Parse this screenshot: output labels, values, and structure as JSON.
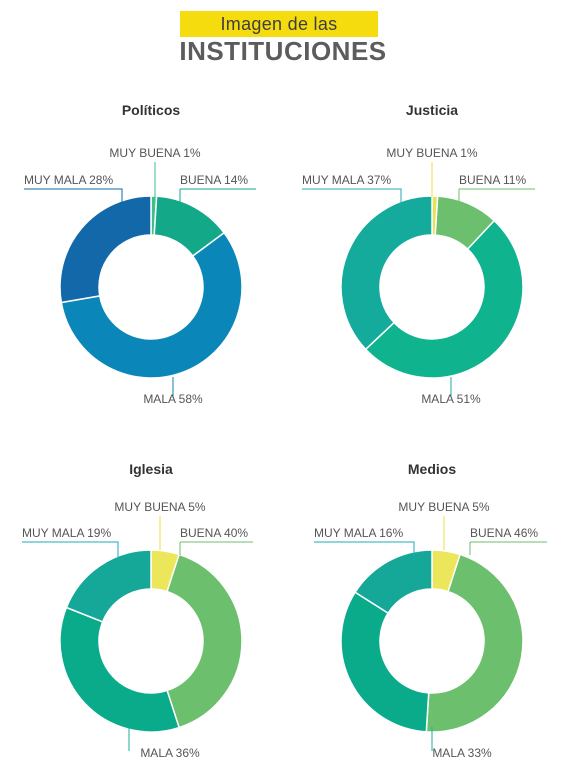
{
  "header": {
    "subtitle": "Imagen de las",
    "title": "INSTITUCIONES"
  },
  "colors": {
    "muy_buena": "#ece75a",
    "buena": "#6cbf6c",
    "mala": "#0aa48c",
    "muy_mala": "#15a898",
    "politicos_muy_buena": "#3fbe8a",
    "politicos_buena": "#12a888",
    "politicos_mala": "#0a87b8",
    "politicos_muy_mala": "#1268a8",
    "justicia_muy_buena": "#e8e25a",
    "justicia_buena": "#6cbf6c",
    "justicia_mala": "#0fb38e",
    "justicia_muy_mala": "#14ab9c"
  },
  "chart_data": [
    {
      "type": "pie",
      "title": "Políticos",
      "categories": [
        "MUY BUENA",
        "BUENA",
        "MALA",
        "MUY MALA"
      ],
      "values": [
        1,
        14,
        58,
        28
      ],
      "labels": [
        "MUY BUENA 1%",
        "BUENA 14%",
        "MALA 58%",
        "MUY MALA 28%"
      ],
      "colors": [
        "#3fbe8a",
        "#12a888",
        "#0a87b8",
        "#1268a8"
      ]
    },
    {
      "type": "pie",
      "title": "Justicia",
      "categories": [
        "MUY BUENA",
        "BUENA",
        "MALA",
        "MUY MALA"
      ],
      "values": [
        1,
        11,
        51,
        37
      ],
      "labels": [
        "MUY BUENA 1%",
        "BUENA 11%",
        "MALA 51%",
        "MUY MALA 37%"
      ],
      "colors": [
        "#e8e25a",
        "#6cbf6c",
        "#0fb38e",
        "#14ab9c"
      ]
    },
    {
      "type": "pie",
      "title": "Iglesia",
      "categories": [
        "MUY BUENA",
        "BUENA",
        "MALA",
        "MUY MALA"
      ],
      "values": [
        5,
        40,
        36,
        19
      ],
      "labels": [
        "MUY BUENA 5%",
        "BUENA 40%",
        "MALA 36%",
        "MUY MALA 19%"
      ],
      "colors": [
        "#ece75a",
        "#6cbf6c",
        "#0aab8a",
        "#15a898"
      ]
    },
    {
      "type": "pie",
      "title": "Medios",
      "categories": [
        "MUY BUENA",
        "BUENA",
        "MALA",
        "MUY MALA"
      ],
      "values": [
        5,
        46,
        33,
        16
      ],
      "labels": [
        "MUY BUENA 5%",
        "BUENA 46%",
        "MALA 33%",
        "MUY MALA 16%"
      ],
      "colors": [
        "#ece75a",
        "#6cbf6c",
        "#0aab8a",
        "#15a898"
      ]
    }
  ]
}
